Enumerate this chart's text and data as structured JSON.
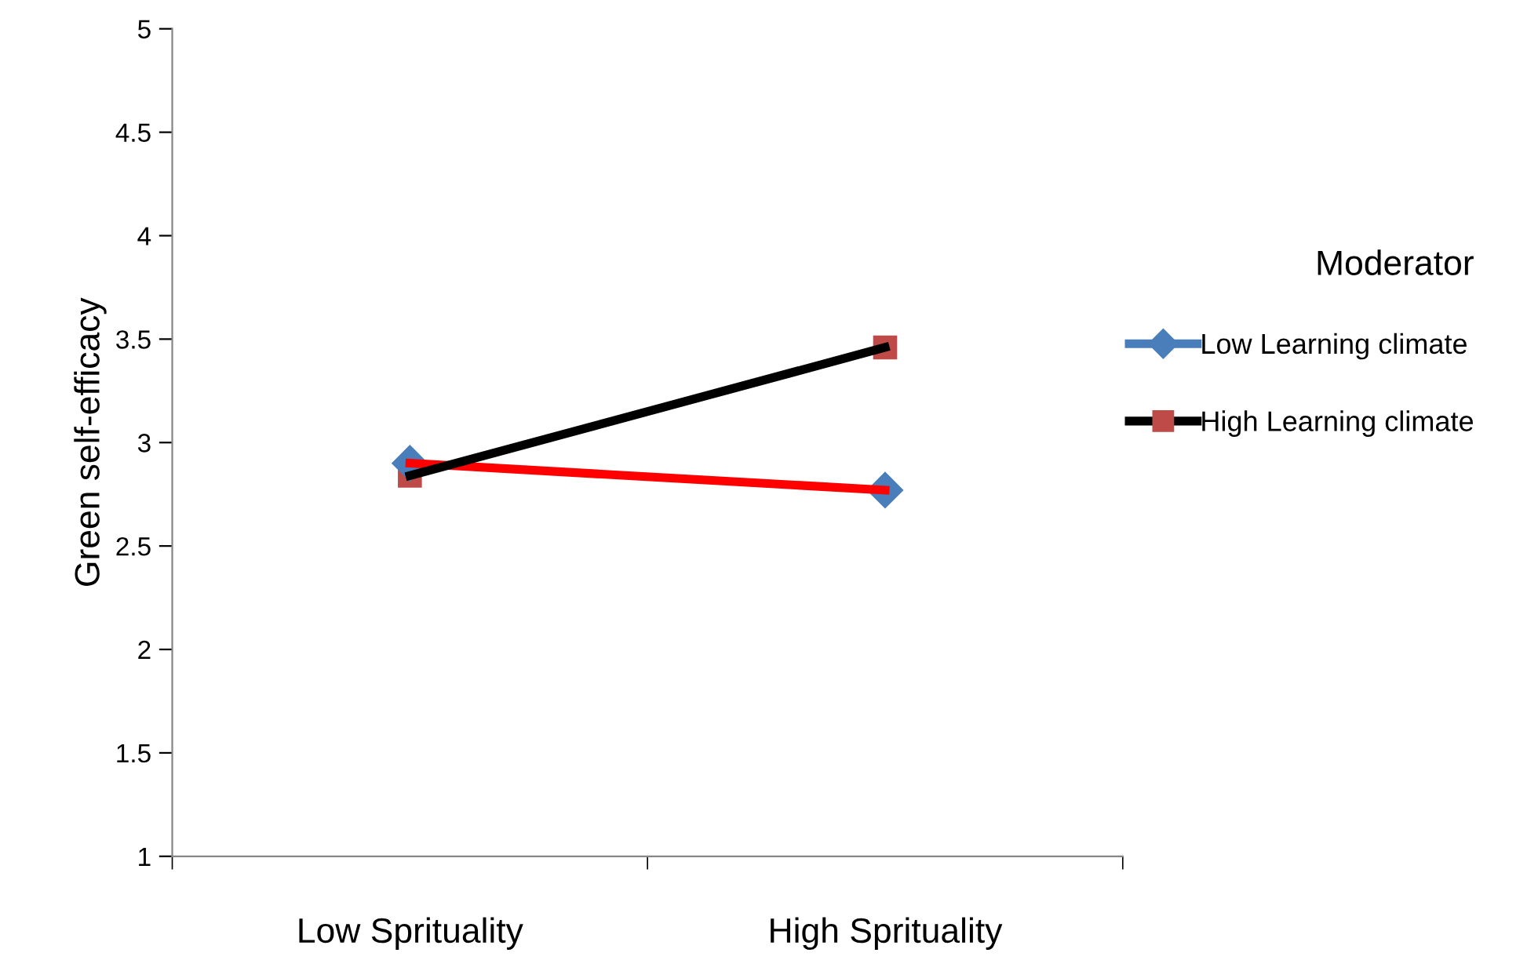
{
  "chart_data": {
    "type": "line",
    "ylabel": "Green self-efficacy",
    "legend_title": "Moderator",
    "categories": [
      "Low Sprituality",
      "High Sprituality"
    ],
    "series": [
      {
        "name": "Low Learning climate",
        "color": "#ff0000",
        "colors": [
          "#4a7ebb",
          "#4a7ebb"
        ],
        "marker": "diamond",
        "values": [
          2.9,
          2.77
        ]
      },
      {
        "name": "High Learning climate",
        "color": "#000000",
        "colors": [
          "#be4b48",
          "#be4b48"
        ],
        "marker": "square",
        "values": [
          2.84,
          3.46
        ]
      }
    ],
    "ylim": [
      1,
      5
    ],
    "yticks": [
      1,
      1.5,
      2,
      2.5,
      3,
      3.5,
      4,
      4.5,
      5
    ],
    "grid": false,
    "legend": "right",
    "line_style": "solid"
  }
}
